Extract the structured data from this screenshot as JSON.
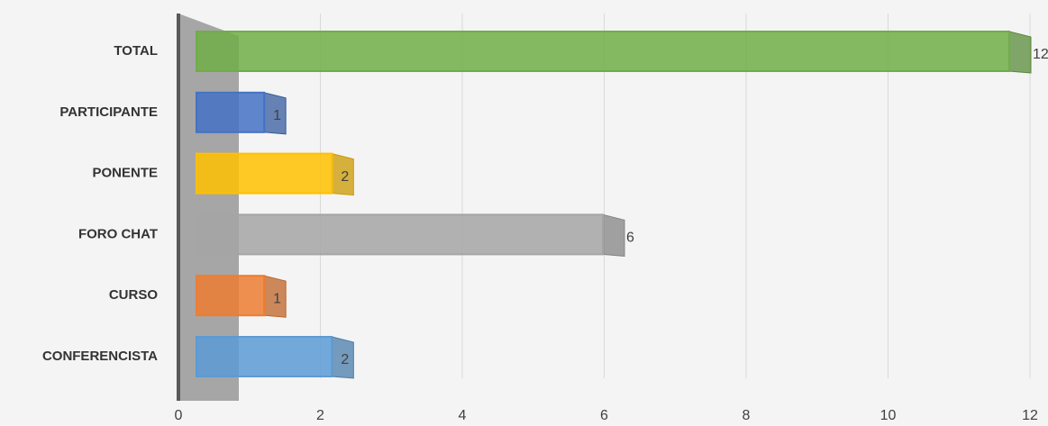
{
  "chart_data": {
    "type": "bar",
    "orientation": "horizontal",
    "categories": [
      "TOTAL",
      "PARTICIPANTE",
      "PONENTE",
      "FORO CHAT",
      "CURSO",
      "CONFERENCISTA"
    ],
    "values": [
      12,
      1,
      2,
      6,
      1,
      2
    ],
    "colors": [
      "#70ad47",
      "#4472c4",
      "#ffc000",
      "#a5a5a5",
      "#ed7d31",
      "#5b9bd5"
    ],
    "xlim": [
      0,
      12
    ],
    "xticks": [
      0,
      2,
      4,
      6,
      8,
      10,
      12
    ],
    "grid": true
  }
}
